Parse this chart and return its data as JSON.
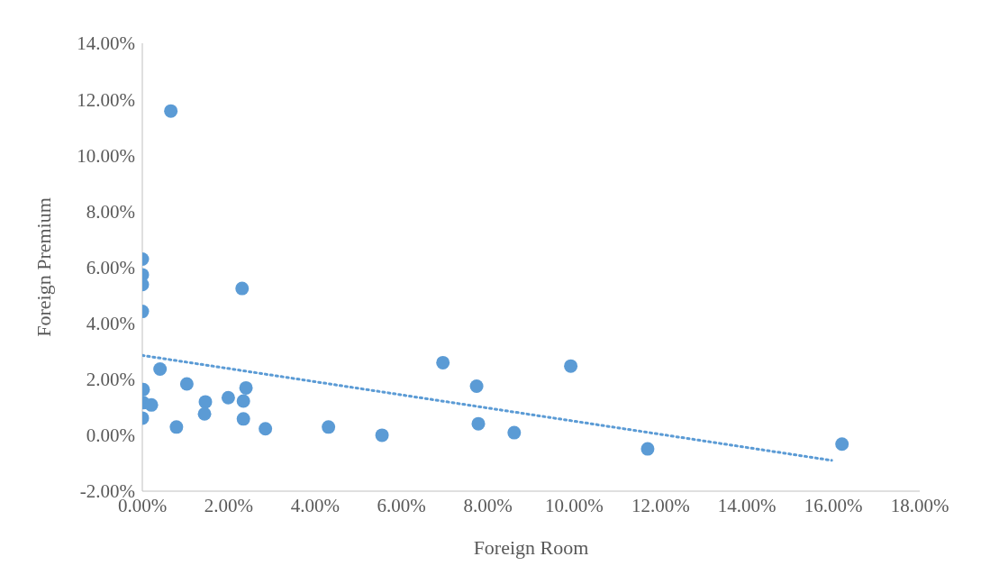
{
  "chart_data": {
    "type": "scatter",
    "xlabel": "Foreign Room",
    "ylabel": "Foreign Premium",
    "xlim": [
      0,
      18
    ],
    "ylim": [
      -2,
      14
    ],
    "xticks": [
      {
        "value": 0,
        "label": "0.00%"
      },
      {
        "value": 2,
        "label": "2.00%"
      },
      {
        "value": 4,
        "label": "4.00%"
      },
      {
        "value": 6,
        "label": "6.00%"
      },
      {
        "value": 8,
        "label": "8.00%"
      },
      {
        "value": 10,
        "label": "10.00%"
      },
      {
        "value": 12,
        "label": "12.00%"
      },
      {
        "value": 14,
        "label": "14.00%"
      },
      {
        "value": 16,
        "label": "16.00%"
      },
      {
        "value": 18,
        "label": "18.00%"
      }
    ],
    "yticks": [
      {
        "value": -2,
        "label": "-2.00%"
      },
      {
        "value": 0,
        "label": "0.00%"
      },
      {
        "value": 2,
        "label": "2.00%"
      },
      {
        "value": 4,
        "label": "4.00%"
      },
      {
        "value": 6,
        "label": "6.00%"
      },
      {
        "value": 8,
        "label": "8.00%"
      },
      {
        "value": 10,
        "label": "10.00%"
      },
      {
        "value": 12,
        "label": "12.00%"
      },
      {
        "value": 14,
        "label": "14.00%"
      }
    ],
    "grid": false,
    "legend": false,
    "marker": "circle",
    "series": [
      {
        "type": "scatter",
        "color": "#5b9bd5",
        "x": [
          0,
          0,
          0,
          0,
          0.66,
          2.31,
          0.41,
          1.03,
          0.02,
          0.02,
          0.21,
          0,
          0.79,
          1.46,
          1.44,
          1.99,
          2.34,
          2.4,
          2.34,
          2.85,
          4.31,
          5.55,
          6.96,
          7.74,
          7.78,
          8.61,
          9.92,
          11.7,
          16.2
        ],
        "values": [
          6.29,
          5.73,
          5.38,
          4.42,
          11.58,
          5.24,
          2.36,
          1.83,
          1.63,
          1.16,
          1.08,
          0.61,
          0.29,
          1.19,
          0.76,
          1.34,
          1.22,
          1.69,
          0.58,
          0.23,
          0.29,
          0.0,
          2.59,
          1.75,
          0.41,
          0.09,
          2.47,
          -0.49,
          -0.32
        ]
      },
      {
        "type": "line",
        "color": "#5b9bd5",
        "line_style": "dotted",
        "marker": "none",
        "x": [
          0,
          15.96
        ],
        "values": [
          2.85,
          -0.9
        ]
      }
    ]
  }
}
